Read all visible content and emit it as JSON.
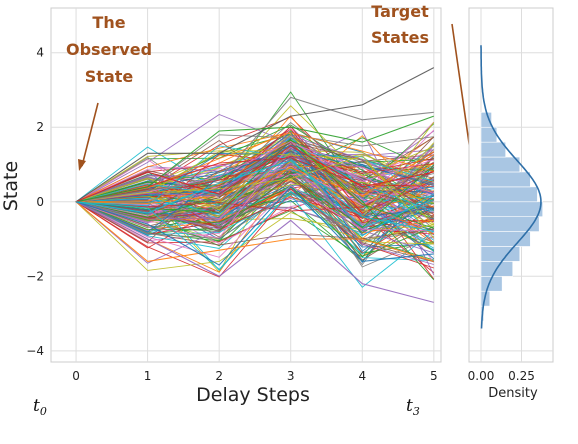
{
  "chart_data": [
    {
      "type": "line",
      "xlabel": "Delay Steps",
      "ylabel": "State",
      "x": [
        0,
        1,
        2,
        3,
        4,
        5
      ],
      "x_ticks": [
        "0",
        "1",
        "2",
        "3",
        "4",
        "5"
      ],
      "y_ticks": [
        "−4",
        "−2",
        "0",
        "2",
        "4"
      ],
      "xlim": [
        -0.35,
        5.1
      ],
      "ylim": [
        -4.3,
        5.2
      ],
      "grid": true,
      "series_count": 200,
      "start_value": 0,
      "series": [
        {
          "values": [
            0,
            0.3,
            0.6,
            2.8,
            2.2,
            2.4
          ]
        },
        {
          "values": [
            0,
            1.3,
            1.3,
            2.3,
            2.6,
            3.6
          ]
        },
        {
          "values": [
            0,
            -1.6,
            -1.3,
            -1.0,
            -1.0,
            -1.6
          ]
        },
        {
          "values": [
            0,
            -1.0,
            -2.0,
            -0.5,
            -2.2,
            -2.7
          ]
        },
        {
          "values": [
            0,
            0.4,
            1.9,
            2.0,
            1.6,
            2.3
          ]
        },
        {
          "values": [
            0,
            -0.6,
            -1.7,
            0.4,
            -1.6,
            -1.4
          ]
        },
        {
          "values": [
            0,
            0.8,
            0.2,
            1.5,
            0.4,
            0.8
          ]
        },
        {
          "values": [
            0,
            -0.3,
            0.5,
            1.1,
            -0.4,
            -0.8
          ]
        }
      ],
      "annotations": [
        {
          "lines": [
            "The",
            "Observed",
            "State"
          ],
          "points_to": [
            0.05,
            0.7
          ]
        },
        {
          "lines": [
            "Target",
            "States"
          ],
          "points_to": [
            5.0,
            0.0
          ]
        }
      ],
      "x_extra_labels": {
        "left": "t",
        "left_sub": "0",
        "right": "t",
        "right_sub": "3"
      }
    },
    {
      "type": "histogram",
      "xlabel": "Density",
      "x_ticks": [
        "0.00",
        "0.25"
      ],
      "xlim": [
        0,
        0.4
      ],
      "ylim": [
        -4.3,
        5.2
      ],
      "bin_edges": [
        -3.2,
        -2.8,
        -2.4,
        -2.0,
        -1.6,
        -1.2,
        -0.8,
        -0.4,
        0.0,
        0.4,
        0.8,
        1.2,
        1.6,
        2.0,
        2.4
      ],
      "densities": [
        0.015,
        0.05,
        0.12,
        0.18,
        0.22,
        0.28,
        0.33,
        0.35,
        0.32,
        0.28,
        0.22,
        0.14,
        0.09,
        0.06
      ],
      "kde": {
        "mean": 0.0,
        "std": 1.1,
        "peak": 0.34
      },
      "bar_color": "#a9c6e3",
      "line_color": "#2e6fa8"
    }
  ],
  "colors": [
    "#1f77b4",
    "#ff7f0e",
    "#2ca02c",
    "#d62728",
    "#9467bd",
    "#8c564b",
    "#e377c2",
    "#7f7f7f",
    "#bcbd22",
    "#17becf"
  ],
  "annotation_color": "#a0521e"
}
